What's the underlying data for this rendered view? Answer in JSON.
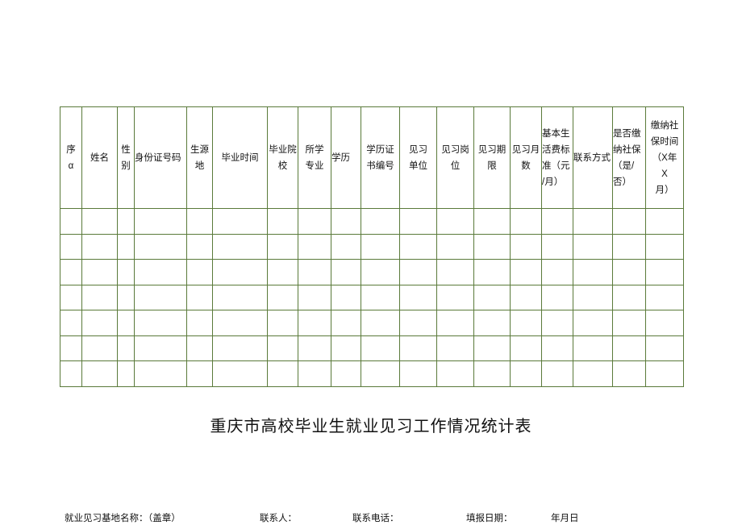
{
  "table": {
    "headers": [
      "序\nα",
      "姓名",
      "性\n别",
      "身份证号码",
      "生源\n地",
      "毕业时间",
      "毕业院\n校",
      "所学\n专业",
      "学历",
      "学历证\n书编号",
      "见习\n单位",
      "见习岗\n位",
      "见习期\n限",
      "见习月\n数",
      "基本生\n活费标\n准（元\n/月）",
      "联系方式",
      "是否缴\n纳社保\n（是/\n否）",
      "缴纳社\n保时间\n（X年\nX\n月）"
    ],
    "empty_rows": 7
  },
  "title": "重庆市高校毕业生就业见习工作情况统计表",
  "footer": {
    "base_name": "就业见习基地名称：（盖章）",
    "contact": "联系人：",
    "phone": "联系电话：",
    "date_label": "填报日期：",
    "date_value": "年月日"
  }
}
